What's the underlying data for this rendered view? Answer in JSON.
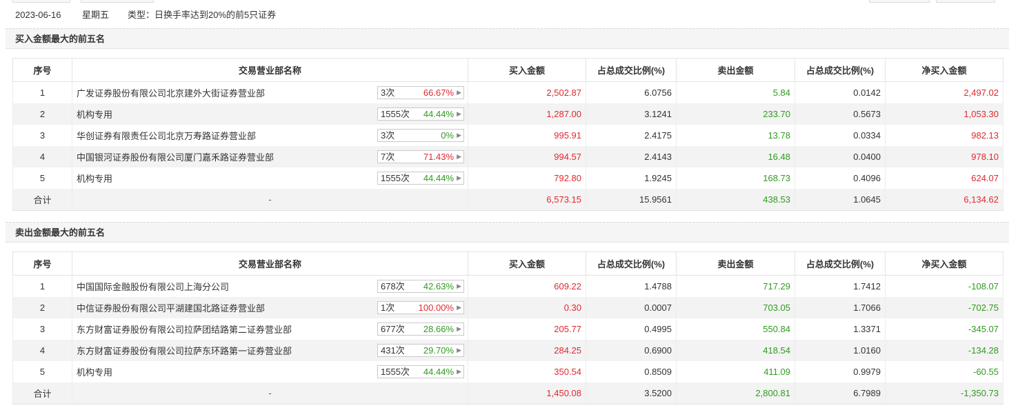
{
  "info": {
    "date": "2023-06-16",
    "weekday": "星期五",
    "type": "类型：日换手率达到20%的前5只证券"
  },
  "colors": {
    "up": "#e0282e",
    "down": "#2f9a1f"
  },
  "headers": [
    "序号",
    "交易营业部名称",
    "买入金额",
    "占总成交比例(%)",
    "卖出金额",
    "占总成交比例(%)",
    "净买入金额"
  ],
  "buy_top5": {
    "title": "买入金额最大的前五名",
    "rows": [
      {
        "idx": "1",
        "name": "广发证券股份有限公司北京建外大街证券营业部",
        "count": "3次",
        "rate": "66.67%",
        "rate_color": "red",
        "buy": "2,502.87",
        "buy_pct": "6.0756",
        "sell": "5.84",
        "sell_pct": "0.0142",
        "net": "2,497.02",
        "net_color": "red"
      },
      {
        "idx": "2",
        "name": "机构专用",
        "count": "1555次",
        "rate": "44.44%",
        "rate_color": "green",
        "buy": "1,287.00",
        "buy_pct": "3.1241",
        "sell": "233.70",
        "sell_pct": "0.5673",
        "net": "1,053.30",
        "net_color": "red"
      },
      {
        "idx": "3",
        "name": "华创证券有限责任公司北京万寿路证券营业部",
        "count": "3次",
        "rate": "0%",
        "rate_color": "green",
        "buy": "995.91",
        "buy_pct": "2.4175",
        "sell": "13.78",
        "sell_pct": "0.0334",
        "net": "982.13",
        "net_color": "red"
      },
      {
        "idx": "4",
        "name": "中国银河证券股份有限公司厦门嘉禾路证券营业部",
        "count": "7次",
        "rate": "71.43%",
        "rate_color": "red",
        "buy": "994.57",
        "buy_pct": "2.4143",
        "sell": "16.48",
        "sell_pct": "0.0400",
        "net": "978.10",
        "net_color": "red"
      },
      {
        "idx": "5",
        "name": "机构专用",
        "count": "1555次",
        "rate": "44.44%",
        "rate_color": "green",
        "buy": "792.80",
        "buy_pct": "1.9245",
        "sell": "168.73",
        "sell_pct": "0.4096",
        "net": "624.07",
        "net_color": "red"
      }
    ],
    "total": {
      "label": "合计",
      "name": "-",
      "buy": "6,573.15",
      "buy_pct": "15.9561",
      "sell": "438.53",
      "sell_pct": "1.0645",
      "net": "6,134.62",
      "net_color": "red"
    }
  },
  "sell_top5": {
    "title": "卖出金额最大的前五名",
    "rows": [
      {
        "idx": "1",
        "name": "中国国际金融股份有限公司上海分公司",
        "count": "678次",
        "rate": "42.63%",
        "rate_color": "green",
        "buy": "609.22",
        "buy_pct": "1.4788",
        "sell": "717.29",
        "sell_pct": "1.7412",
        "net": "-108.07",
        "net_color": "green"
      },
      {
        "idx": "2",
        "name": "中信证券股份有限公司平湖建国北路证券营业部",
        "count": "1次",
        "rate": "100.00%",
        "rate_color": "red",
        "buy": "0.30",
        "buy_pct": "0.0007",
        "sell": "703.05",
        "sell_pct": "1.7066",
        "net": "-702.75",
        "net_color": "green"
      },
      {
        "idx": "3",
        "name": "东方财富证券股份有限公司拉萨团结路第二证券营业部",
        "count": "677次",
        "rate": "28.66%",
        "rate_color": "green",
        "buy": "205.77",
        "buy_pct": "0.4995",
        "sell": "550.84",
        "sell_pct": "1.3371",
        "net": "-345.07",
        "net_color": "green"
      },
      {
        "idx": "4",
        "name": "东方财富证券股份有限公司拉萨东环路第一证券营业部",
        "count": "431次",
        "rate": "29.70%",
        "rate_color": "green",
        "buy": "284.25",
        "buy_pct": "0.6900",
        "sell": "418.54",
        "sell_pct": "1.0160",
        "net": "-134.28",
        "net_color": "green"
      },
      {
        "idx": "5",
        "name": "机构专用",
        "count": "1555次",
        "rate": "44.44%",
        "rate_color": "green",
        "buy": "350.54",
        "buy_pct": "0.8509",
        "sell": "411.09",
        "sell_pct": "0.9979",
        "net": "-60.55",
        "net_color": "green"
      }
    ],
    "total": {
      "label": "合计",
      "name": "-",
      "buy": "1,450.08",
      "buy_pct": "3.5200",
      "sell": "2,800.81",
      "sell_pct": "6.7989",
      "net": "-1,350.73",
      "net_color": "green"
    }
  }
}
